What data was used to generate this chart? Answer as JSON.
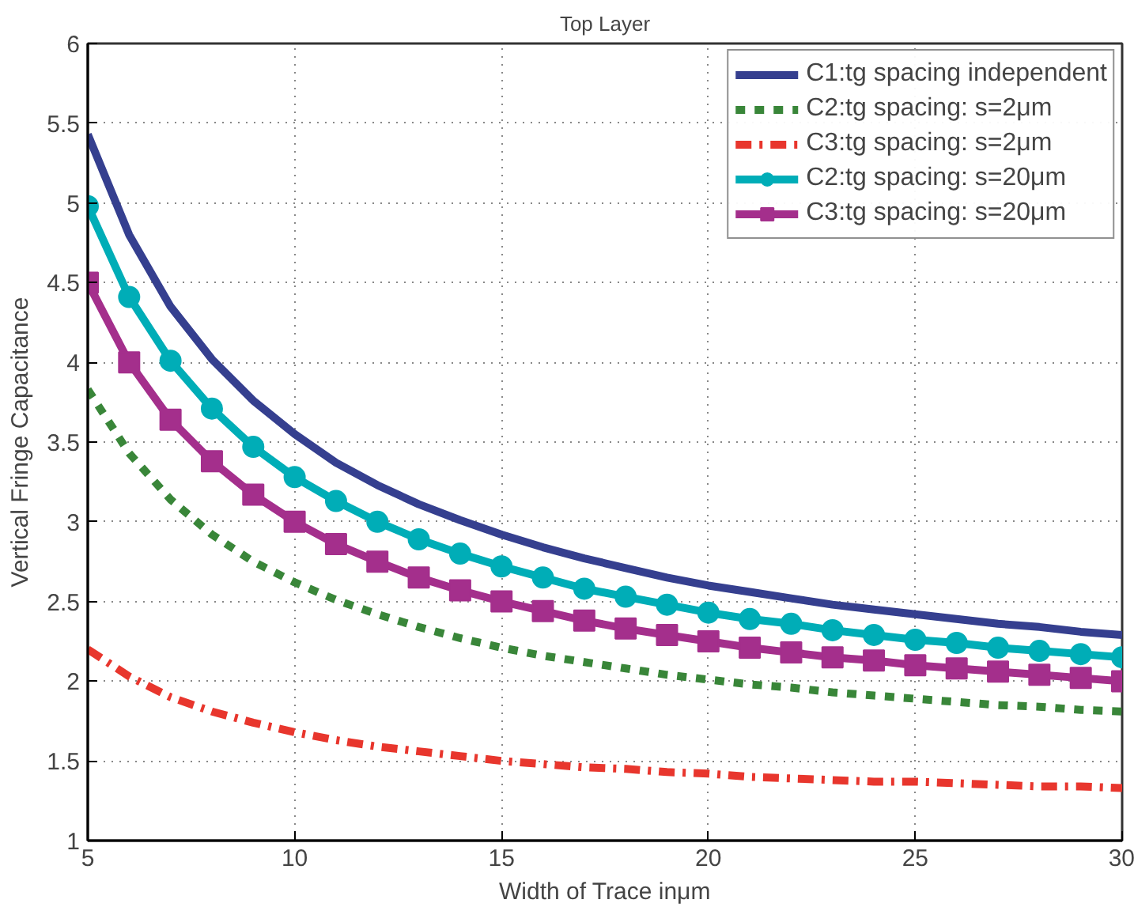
{
  "chart_data": {
    "type": "line",
    "title": "Top Layer",
    "xlabel": "Width of Trace inμm",
    "ylabel": "Vertical Fringe Capacitance",
    "x": [
      5,
      6,
      7,
      8,
      9,
      10,
      11,
      12,
      13,
      14,
      15,
      16,
      17,
      18,
      19,
      20,
      21,
      22,
      23,
      24,
      25,
      26,
      27,
      28,
      29,
      30
    ],
    "xlim": [
      5,
      30
    ],
    "xticks": [
      5,
      10,
      15,
      20,
      25,
      30
    ],
    "ylim": [
      1,
      6
    ],
    "yticks": [
      1,
      1.5,
      2,
      2.5,
      3,
      3.5,
      4,
      4.5,
      5,
      5.5,
      6
    ],
    "grid": true,
    "legend": "top right",
    "series": [
      {
        "name": "C1:tg spacing independent",
        "color": "#353f8f",
        "line_style": "solid",
        "marker": "none",
        "values": [
          5.43,
          4.8,
          4.35,
          4.02,
          3.76,
          3.55,
          3.37,
          3.23,
          3.11,
          3.01,
          2.92,
          2.84,
          2.77,
          2.71,
          2.65,
          2.6,
          2.56,
          2.52,
          2.48,
          2.45,
          2.42,
          2.39,
          2.36,
          2.34,
          2.31,
          2.29
        ]
      },
      {
        "name": "C2:tg spacing: s=2μm",
        "color": "#398639",
        "line_style": "dashed",
        "marker": "none",
        "values": [
          3.83,
          3.43,
          3.14,
          2.92,
          2.75,
          2.62,
          2.51,
          2.42,
          2.34,
          2.27,
          2.21,
          2.16,
          2.12,
          2.08,
          2.04,
          2.01,
          1.98,
          1.96,
          1.93,
          1.91,
          1.89,
          1.87,
          1.85,
          1.84,
          1.82,
          1.81
        ]
      },
      {
        "name": "C3:tg spacing: s=2μm",
        "color": "#e8362d",
        "line_style": "dashdot",
        "marker": "none",
        "values": [
          2.2,
          2.03,
          1.9,
          1.81,
          1.74,
          1.68,
          1.63,
          1.59,
          1.56,
          1.53,
          1.5,
          1.48,
          1.46,
          1.45,
          1.43,
          1.42,
          1.4,
          1.39,
          1.38,
          1.37,
          1.37,
          1.36,
          1.35,
          1.34,
          1.34,
          1.33
        ]
      },
      {
        "name": "C2:tg spacing: s=20μm",
        "color": "#00adb7",
        "line_style": "solid",
        "marker": "circle",
        "values": [
          4.98,
          4.41,
          4.01,
          3.71,
          3.47,
          3.28,
          3.13,
          3.0,
          2.89,
          2.8,
          2.72,
          2.65,
          2.58,
          2.53,
          2.48,
          2.43,
          2.39,
          2.36,
          2.32,
          2.29,
          2.26,
          2.24,
          2.21,
          2.19,
          2.17,
          2.15
        ]
      },
      {
        "name": "C3:tg spacing: s=20μm",
        "color": "#a42f8c",
        "line_style": "solid",
        "marker": "square",
        "values": [
          4.5,
          4.0,
          3.64,
          3.38,
          3.17,
          3.0,
          2.86,
          2.75,
          2.65,
          2.57,
          2.5,
          2.44,
          2.38,
          2.33,
          2.29,
          2.25,
          2.21,
          2.18,
          2.15,
          2.13,
          2.1,
          2.08,
          2.06,
          2.04,
          2.02,
          2.0
        ]
      }
    ]
  }
}
